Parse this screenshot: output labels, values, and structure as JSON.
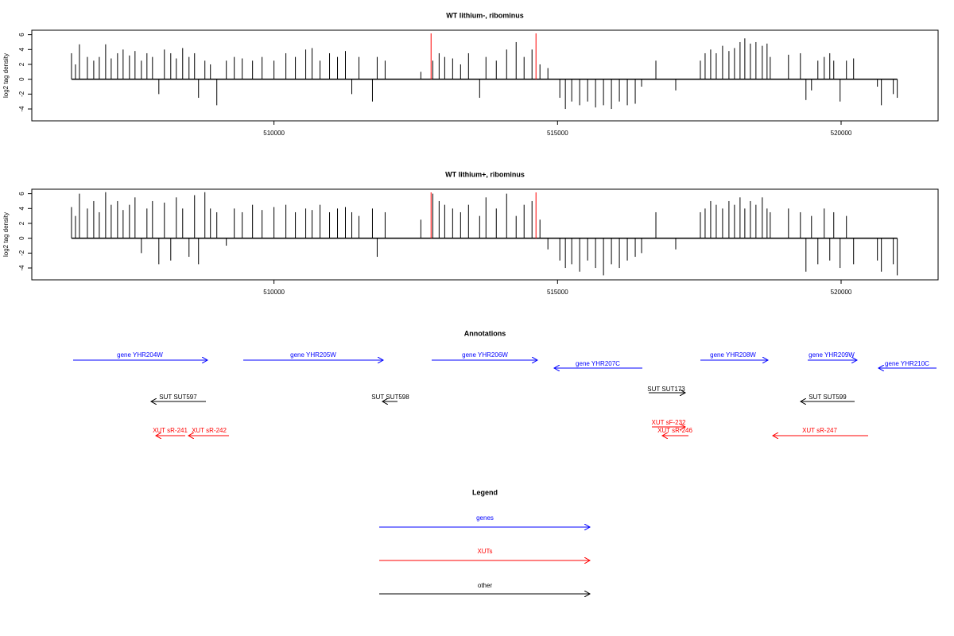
{
  "chart_data": [
    {
      "type": "spike",
      "title": "WT lithium-, ribominus",
      "ylabel": "log2 tag density",
      "color": "#000000",
      "markers": [
        512770,
        514620
      ],
      "marker_color": "#ff0000",
      "xlim": [
        505730,
        521710
      ],
      "ylim": [
        -5.6,
        6.6
      ],
      "xticks": [
        510000,
        515000,
        520000
      ],
      "yticks": [
        -4,
        -2,
        0,
        2,
        4,
        6
      ],
      "x": [
        506430,
        506500,
        506570,
        506710,
        506822,
        506920,
        507032,
        507130,
        507242,
        507340,
        507452,
        507550,
        507662,
        507760,
        507858,
        507970,
        508068,
        508180,
        508278,
        508390,
        508502,
        508600,
        508670,
        508782,
        508880,
        508992,
        509160,
        509300,
        509440,
        509622,
        509790,
        510000,
        510210,
        510378,
        510560,
        510672,
        510812,
        510980,
        511120,
        511260,
        511372,
        511498,
        511736,
        511820,
        511960,
        512590,
        512800,
        512912,
        513010,
        513150,
        513290,
        513430,
        513626,
        513738,
        513920,
        514102,
        514270,
        514410,
        514550,
        514690,
        514830,
        515040,
        515138,
        515250,
        515390,
        515530,
        515670,
        515810,
        515950,
        516090,
        516230,
        516370,
        516482,
        516734,
        517084,
        517518,
        517602,
        517700,
        517798,
        517910,
        518022,
        518120,
        518218,
        518302,
        518400,
        518498,
        518610,
        518694,
        518750,
        519072,
        519282,
        519380,
        519478,
        519590,
        519702,
        519800,
        519870,
        519982,
        520094,
        520220,
        520640,
        520710,
        520920,
        520990
      ],
      "values": [
        3.5,
        2,
        4.7,
        3,
        2.5,
        3,
        4.7,
        2.8,
        3.5,
        4,
        3.2,
        3.8,
        2.5,
        3.5,
        3,
        -2,
        4,
        3.5,
        2.8,
        4.2,
        3,
        3.5,
        -2.5,
        2.5,
        2,
        -3.5,
        2.5,
        3,
        2.8,
        2.5,
        3,
        2.5,
        3.5,
        3,
        4,
        4.2,
        2.5,
        3.5,
        3,
        3.8,
        -2,
        3,
        -3,
        3,
        2.5,
        1,
        2.5,
        3.5,
        3,
        2.8,
        2,
        3.5,
        -2.5,
        3,
        2.5,
        4,
        5,
        3,
        4,
        2,
        1.5,
        -2.5,
        -4,
        -3,
        -3.5,
        -3,
        -3.8,
        -3.5,
        -4,
        -3,
        -3.5,
        -3.3,
        -1,
        2.5,
        -1.5,
        2.5,
        3.5,
        4,
        3.5,
        4.5,
        3.8,
        4.2,
        5,
        5.5,
        4.8,
        5,
        4.5,
        4.8,
        3,
        3.3,
        3.5,
        -2.8,
        -1.5,
        2.5,
        3,
        3.5,
        2.5,
        -3,
        2.5,
        2.8,
        -1,
        -3.5,
        -2,
        -2.5
      ]
    },
    {
      "type": "spike",
      "title": "WT lithium+, ribominus",
      "ylabel": "log2 tag density",
      "color": "#000000",
      "markers": [
        512770,
        514620
      ],
      "marker_color": "#ff0000",
      "xlim": [
        505730,
        521710
      ],
      "ylim": [
        -5.6,
        6.6
      ],
      "xticks": [
        510000,
        515000,
        520000
      ],
      "yticks": [
        -4,
        -2,
        0,
        2,
        4,
        6
      ],
      "x": [
        506430,
        506500,
        506570,
        506710,
        506822,
        506920,
        507032,
        507130,
        507242,
        507340,
        507452,
        507550,
        507662,
        507760,
        507858,
        507970,
        508068,
        508180,
        508278,
        508390,
        508502,
        508600,
        508670,
        508782,
        508880,
        508992,
        509160,
        509300,
        509440,
        509622,
        509790,
        510000,
        510210,
        510378,
        510560,
        510672,
        510812,
        510980,
        511120,
        511260,
        511372,
        511498,
        511736,
        511820,
        511960,
        512590,
        512800,
        512912,
        513010,
        513150,
        513290,
        513430,
        513626,
        513738,
        513920,
        514102,
        514270,
        514410,
        514550,
        514690,
        514830,
        515040,
        515138,
        515250,
        515390,
        515530,
        515670,
        515810,
        515950,
        516090,
        516230,
        516370,
        516482,
        516734,
        517084,
        517518,
        517602,
        517700,
        517798,
        517910,
        518022,
        518120,
        518218,
        518302,
        518400,
        518498,
        518610,
        518694,
        518750,
        519072,
        519282,
        519380,
        519478,
        519590,
        519702,
        519800,
        519870,
        519982,
        520094,
        520220,
        520640,
        520710,
        520920,
        520990
      ],
      "values": [
        4.2,
        3,
        6,
        4,
        5,
        3.5,
        6.2,
        4.5,
        5,
        3.8,
        4.5,
        5.5,
        -2,
        4,
        5,
        -3.5,
        4.8,
        -3,
        5.5,
        4,
        -2.5,
        5.8,
        -3.5,
        6.2,
        4,
        3.5,
        -1,
        4,
        3.5,
        4.5,
        3.8,
        4.2,
        4.5,
        3.5,
        4,
        3.8,
        4.5,
        3.5,
        4,
        4.2,
        3.5,
        3,
        4,
        -2.5,
        3.5,
        2.5,
        6,
        5,
        4.5,
        4,
        3.5,
        4.5,
        3,
        5.5,
        4,
        6,
        3,
        4.5,
        5,
        2.5,
        -1.5,
        -3,
        -4,
        -3.5,
        -4.5,
        -3,
        -4,
        -5,
        -3.5,
        -4,
        -3,
        -2.5,
        -2,
        3.5,
        -1.5,
        3.5,
        4,
        5,
        4.5,
        4,
        5,
        4.5,
        5.5,
        4,
        5,
        4.5,
        5.5,
        4,
        3.5,
        4,
        3.5,
        -4.5,
        3,
        -3.5,
        4,
        -3,
        3.5,
        -4,
        3,
        -3.5,
        -3,
        -4.5,
        -3.5,
        -5
      ]
    }
  ],
  "annotations": {
    "title": "Annotations",
    "genes": [
      "gene YHR204W",
      "gene YHR205W",
      "gene YHR206W",
      "gene YHR207C",
      "gene YHR208W",
      "gene YHR209W",
      "gene YHR210C"
    ],
    "suts": [
      "SUT SUT597",
      "SUT SUT598",
      "SUT SUT173",
      "SUT SUT599"
    ],
    "xuts": [
      "XUT sR-241",
      "XUT sR-242",
      "XUT sF-232",
      "XUT sR-246",
      "XUT sR-247"
    ]
  },
  "legend": {
    "title": "Legend",
    "items": [
      "genes",
      "XUTs",
      "other"
    ]
  }
}
